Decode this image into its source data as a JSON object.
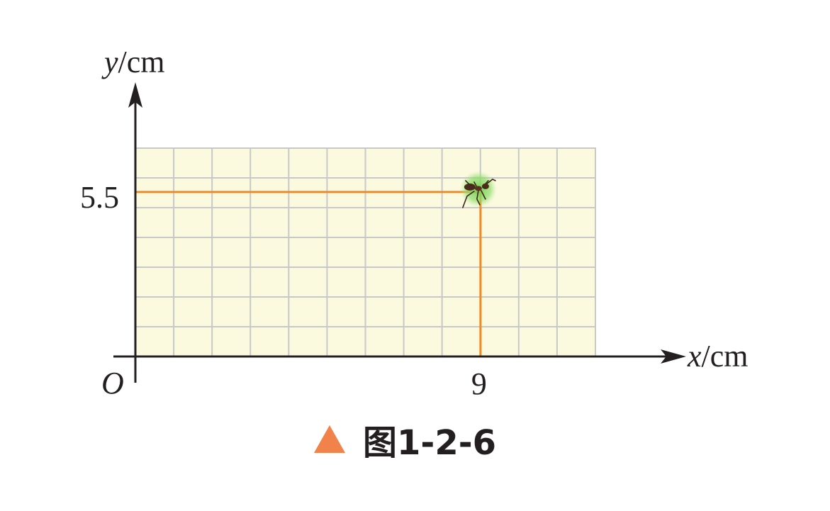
{
  "axes": {
    "x_label_var": "x",
    "x_label_unit": "/cm",
    "y_label_var": "y",
    "y_label_unit": "/cm",
    "origin_label": "O"
  },
  "grid": {
    "columns": 12,
    "rows": 7,
    "fill_color": "#fbfadf",
    "line_color": "#c8c8c8"
  },
  "point": {
    "x": 9,
    "y": 5.5,
    "x_tick_label": "9",
    "y_tick_label": "5.5",
    "guide_color": "#f08a24",
    "marker_icon": "ant-icon"
  },
  "caption": {
    "marker_color": "#f0824a",
    "text": "图1-2-6"
  }
}
